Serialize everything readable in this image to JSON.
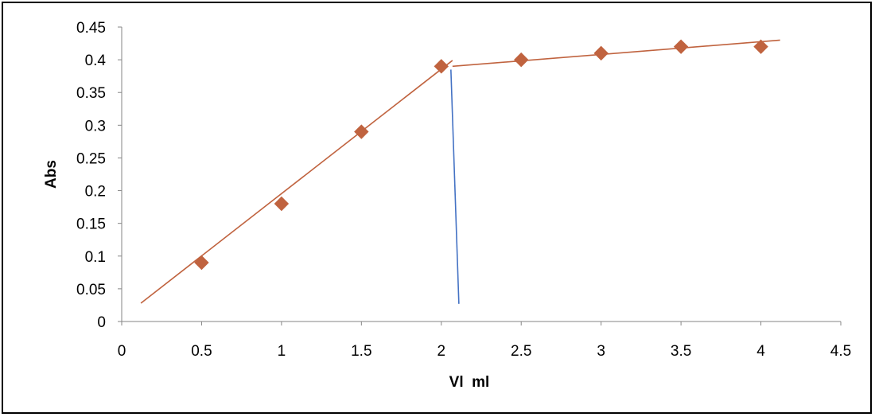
{
  "chart_data": {
    "type": "scatter",
    "title": "",
    "xlabel": "Vl  ml",
    "ylabel": "Abs",
    "xlim": [
      0,
      4.5
    ],
    "ylim": [
      0,
      0.45
    ],
    "xticks": [
      0,
      0.5,
      1,
      1.5,
      2,
      2.5,
      3,
      3.5,
      4,
      4.5
    ],
    "xtick_labels": [
      "0",
      "0.5",
      "1",
      "1.5",
      "2",
      "2.5",
      "3",
      "3.5",
      "4",
      "4.5"
    ],
    "yticks": [
      0,
      0.05,
      0.1,
      0.15,
      0.2,
      0.25,
      0.3,
      0.35,
      0.4,
      0.45
    ],
    "ytick_labels": [
      "0",
      "0.05",
      "0.1",
      "0.15",
      "0.2",
      "0.25",
      "0.3",
      "0.35",
      "0.4",
      "0.45"
    ],
    "grid": false,
    "legend": "none",
    "series": [
      {
        "marker": "diamond",
        "color": "#C0633F",
        "x": [
          0.5,
          1,
          1.5,
          2,
          2.5,
          3,
          3.5,
          4
        ],
        "y": [
          0.09,
          0.18,
          0.29,
          0.39,
          0.4,
          0.41,
          0.42,
          0.42
        ]
      }
    ],
    "trend_lines": [
      {
        "color": "#C0633F",
        "x": [
          0.12,
          2.07
        ],
        "y": [
          0.028,
          0.399
        ]
      },
      {
        "color": "#C0633F",
        "x": [
          2.07,
          4.12
        ],
        "y": [
          0.39,
          0.43
        ]
      }
    ],
    "annotation_lines": [
      {
        "color": "#4472C4",
        "x": [
          2.06,
          2.11
        ],
        "y": [
          0.385,
          0.027
        ]
      }
    ]
  }
}
